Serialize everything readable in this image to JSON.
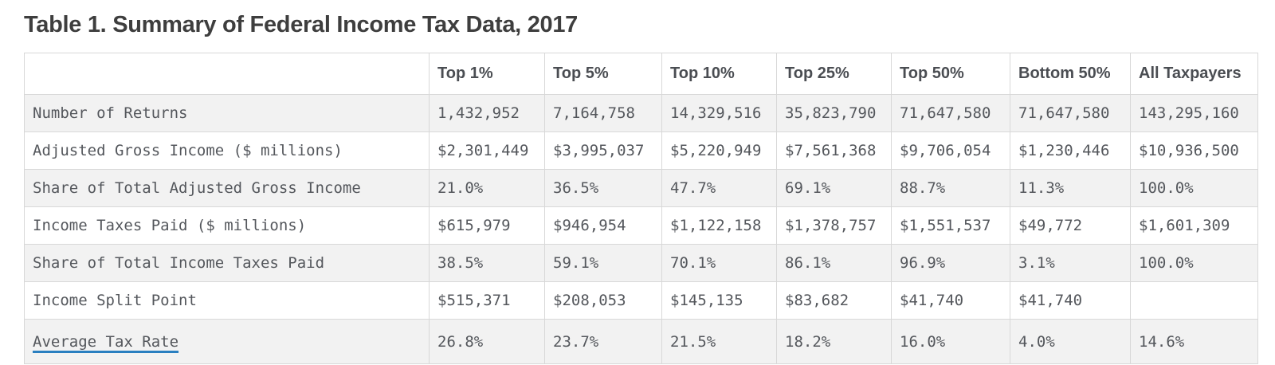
{
  "page": {
    "title": "Table 1. Summary of Federal Income Tax Data, 2017"
  },
  "colors": {
    "title_text": "#3e3e3e",
    "header_text": "#4a4d52",
    "cell_text": "#54575c",
    "striped_row_bg": "#f2f2f2",
    "border": "#d8d8d8",
    "link_underline_blue": "#2a7fc0"
  },
  "table": {
    "columns": [
      "",
      "Top 1%",
      "Top 5%",
      "Top 10%",
      "Top 25%",
      "Top 50%",
      "Bottom 50%",
      "All Taxpayers"
    ],
    "rows": [
      {
        "label": "Number of Returns",
        "link": false,
        "values": [
          "1,432,952",
          "7,164,758",
          "14,329,516",
          "35,823,790",
          "71,647,580",
          "71,647,580",
          "143,295,160"
        ]
      },
      {
        "label": "Adjusted Gross Income ($ millions)",
        "link": false,
        "values": [
          "$2,301,449",
          "$3,995,037",
          "$5,220,949",
          "$7,561,368",
          "$9,706,054",
          "$1,230,446",
          "$10,936,500"
        ]
      },
      {
        "label": "Share of Total Adjusted Gross Income",
        "link": false,
        "values": [
          "21.0%",
          "36.5%",
          "47.7%",
          "69.1%",
          "88.7%",
          "11.3%",
          "100.0%"
        ]
      },
      {
        "label": "Income Taxes Paid ($ millions)",
        "link": false,
        "values": [
          "$615,979",
          "$946,954",
          "$1,122,158",
          "$1,378,757",
          "$1,551,537",
          "$49,772",
          "$1,601,309"
        ]
      },
      {
        "label": "Share of Total Income Taxes Paid",
        "link": false,
        "values": [
          "38.5%",
          "59.1%",
          "70.1%",
          "86.1%",
          "96.9%",
          "3.1%",
          "100.0%"
        ]
      },
      {
        "label": "Income Split Point",
        "link": false,
        "values": [
          "$515,371",
          "$208,053",
          "$145,135",
          "$83,682",
          "$41,740",
          "$41,740",
          ""
        ]
      },
      {
        "label": "Average Tax Rate",
        "link": true,
        "values": [
          "26.8%",
          "23.7%",
          "21.5%",
          "18.2%",
          "16.0%",
          "4.0%",
          "14.6%"
        ]
      }
    ]
  },
  "chart_data": {
    "type": "table",
    "title": "Table 1. Summary of Federal Income Tax Data, 2017",
    "columns": [
      "Top 1%",
      "Top 5%",
      "Top 10%",
      "Top 25%",
      "Top 50%",
      "Bottom 50%",
      "All Taxpayers"
    ],
    "rows": [
      {
        "metric": "Number of Returns",
        "values": [
          1432952,
          7164758,
          14329516,
          35823790,
          71647580,
          71647580,
          143295160
        ]
      },
      {
        "metric": "Adjusted Gross Income ($ millions)",
        "values": [
          2301449,
          3995037,
          5220949,
          7561368,
          9706054,
          1230446,
          10936500
        ]
      },
      {
        "metric": "Share of Total Adjusted Gross Income (%)",
        "values": [
          21.0,
          36.5,
          47.7,
          69.1,
          88.7,
          11.3,
          100.0
        ]
      },
      {
        "metric": "Income Taxes Paid ($ millions)",
        "values": [
          615979,
          946954,
          1122158,
          1378757,
          1551537,
          49772,
          1601309
        ]
      },
      {
        "metric": "Share of Total Income Taxes Paid (%)",
        "values": [
          38.5,
          59.1,
          70.1,
          86.1,
          96.9,
          3.1,
          100.0
        ]
      },
      {
        "metric": "Income Split Point ($)",
        "values": [
          515371,
          208053,
          145135,
          83682,
          41740,
          41740,
          null
        ]
      },
      {
        "metric": "Average Tax Rate (%)",
        "values": [
          26.8,
          23.7,
          21.5,
          18.2,
          16.0,
          4.0,
          14.6
        ]
      }
    ]
  }
}
